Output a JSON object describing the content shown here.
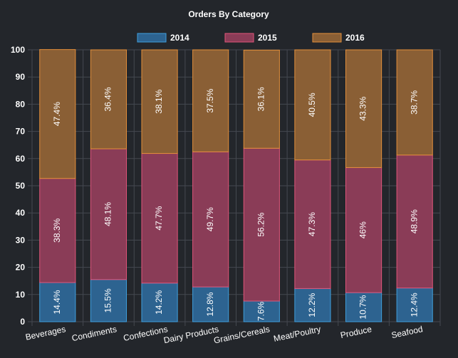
{
  "chart_data": {
    "type": "bar",
    "stacked": true,
    "title": "Orders By Category",
    "categories": [
      "Beverages",
      "Condiments",
      "Confections",
      "Dairy Products",
      "Grains/Cereals",
      "Meat/Poultry",
      "Produce",
      "Seafood"
    ],
    "series": [
      {
        "name": "2014",
        "values": [
          14.4,
          15.5,
          14.2,
          12.8,
          7.6,
          12.2,
          10.7,
          12.4
        ],
        "labels": [
          "14.4%",
          "15.5%",
          "14.2%",
          "12.8%",
          "7.6%",
          "12.2%",
          "10.7%",
          "12.4%"
        ],
        "fill": "#2d6390",
        "stroke": "#3f9fdc"
      },
      {
        "name": "2015",
        "values": [
          38.3,
          48.1,
          47.7,
          49.7,
          56.2,
          47.3,
          46,
          48.9
        ],
        "labels": [
          "38.3%",
          "48.1%",
          "47.7%",
          "49.7%",
          "56.2%",
          "47.3%",
          "46%",
          "48.9%"
        ],
        "fill": "#8a3c57",
        "stroke": "#e0557a"
      },
      {
        "name": "2016",
        "values": [
          47.4,
          36.4,
          38.1,
          37.5,
          36.1,
          40.5,
          43.3,
          38.7
        ],
        "labels": [
          "47.4%",
          "36.4%",
          "38.1%",
          "37.5%",
          "36.1%",
          "40.5%",
          "43.3%",
          "38.7%"
        ],
        "fill": "#8a5f35",
        "stroke": "#e38f3a"
      }
    ],
    "ylim": [
      0,
      100
    ],
    "yticks": [
      0,
      10,
      20,
      30,
      40,
      50,
      60,
      70,
      80,
      90,
      100
    ],
    "legend_position": "top",
    "grid": true,
    "colors": {
      "background": "#23262b",
      "grid": "#444850",
      "text": "#ffffff"
    }
  }
}
